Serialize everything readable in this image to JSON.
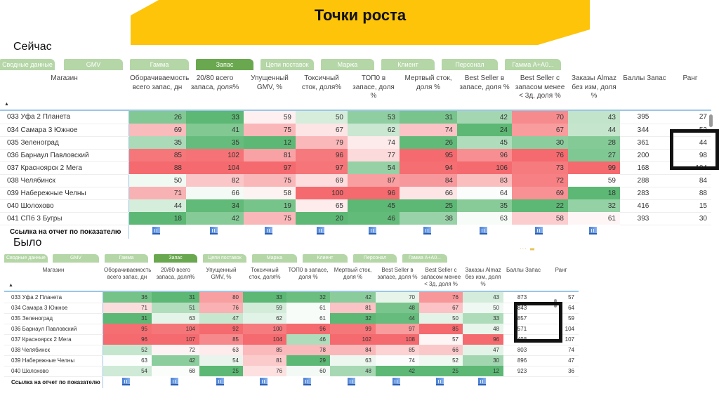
{
  "header": {
    "title": "Точки роста"
  },
  "sections": [
    {
      "label": "Сейчас",
      "tabs": [
        {
          "label": "Сводные данные",
          "active": false
        },
        {
          "label": "GMV",
          "active": false
        },
        {
          "label": "Гамма",
          "active": false
        },
        {
          "label": "Запас",
          "active": true
        },
        {
          "label": "Цепи поставок",
          "active": false
        },
        {
          "label": "Маржа",
          "active": false
        },
        {
          "label": "Клиент",
          "active": false
        },
        {
          "label": "Персонал",
          "active": false
        },
        {
          "label": "Гамма А+А0...",
          "active": false
        }
      ],
      "columns": [
        "Магазин",
        "Оборачиваемость всего запас, дн",
        "20/80 всего запаса, доля%",
        "Упущенный GMV, %",
        "Токсичный сток, доля%",
        "ТОП0 в запасе, доля %",
        "Мертвый сток, доля %",
        "Best Seller в запасе, доля %",
        "Best Seller с запасом менее < 3д, доля %",
        "Заказы Almaz без изм, доля %",
        "Баллы Запас",
        "Ранг"
      ],
      "rows": [
        {
          "store": "033 Уфа 2 Планета",
          "values": [
            26,
            33,
            59,
            50,
            53,
            31,
            42,
            70,
            43
          ],
          "score": 395,
          "rank": 27
        },
        {
          "store": "034 Самара 3 Южное",
          "values": [
            69,
            41,
            75,
            67,
            62,
            74,
            24,
            67,
            44
          ],
          "score": 344,
          "rank": 52
        },
        {
          "store": "035 Зеленоград",
          "values": [
            35,
            35,
            12,
            79,
            74,
            26,
            45,
            30,
            28
          ],
          "score": 361,
          "rank": 44
        },
        {
          "store": "036 Барнаул Павловский",
          "values": [
            85,
            102,
            81,
            96,
            77,
            95,
            96,
            76,
            27
          ],
          "score": 200,
          "rank": 98
        },
        {
          "store": "037 Красноярск 2 Мега",
          "values": [
            88,
            104,
            97,
            97,
            54,
            94,
            106,
            73,
            99
          ],
          "score": 168,
          "rank": 104
        },
        {
          "store": "038 Челябинск",
          "values": [
            50,
            82,
            75,
            69,
            87,
            84,
            83,
            72,
            59
          ],
          "score": 288,
          "rank": 84
        },
        {
          "store": "039 Набережные Челны",
          "values": [
            71,
            66,
            58,
            100,
            96,
            66,
            64,
            69,
            18
          ],
          "score": 283,
          "rank": 88
        },
        {
          "store": "040 Шолохово",
          "values": [
            44,
            34,
            19,
            65,
            45,
            25,
            35,
            22,
            32
          ],
          "score": 416,
          "rank": 15
        },
        {
          "store": "041 СПб 3 Бугры",
          "values": [
            18,
            42,
            75,
            20,
            46,
            38,
            63,
            58,
            61
          ],
          "score": 393,
          "rank": 30
        }
      ],
      "link_row_label": "Ссылка на отчет по показателю",
      "sort_indicator": "▲"
    },
    {
      "label": "Было",
      "tabs": [
        {
          "label": "Сводные данные",
          "active": false
        },
        {
          "label": "GMV",
          "active": false
        },
        {
          "label": "Гамма",
          "active": false
        },
        {
          "label": "Запас",
          "active": true
        },
        {
          "label": "Цепи поставок",
          "active": false
        },
        {
          "label": "Маржа",
          "active": false
        },
        {
          "label": "Клиент",
          "active": false
        },
        {
          "label": "Персонал",
          "active": false
        },
        {
          "label": "Гамма А+А0...",
          "active": false
        }
      ],
      "columns": [
        "Магазин",
        "Оборачиваемость всего запас, дн",
        "20/80 всего запаса, доля%",
        "Упущенный GMV, %",
        "Токсичный сток, доля%",
        "ТОП0 в запасе, доля %",
        "Мертвый сток, доля %",
        "Best Seller в запасе, доля %",
        "Best Seller с запасом менее < 3д, доля %",
        "Заказы Almaz без изм, доля %",
        "Баллы Запас",
        "Ранг"
      ],
      "rows": [
        {
          "store": "033 Уфа 2 Планета",
          "values": [
            36,
            31,
            80,
            33,
            32,
            42,
            70,
            76,
            43
          ],
          "score": 873,
          "rank": 57
        },
        {
          "store": "034 Самара 3 Южное",
          "values": [
            71,
            51,
            76,
            59,
            61,
            81,
            48,
            67,
            50
          ],
          "score": 843,
          "rank": 64
        },
        {
          "store": "035 Зеленоград",
          "values": [
            31,
            63,
            47,
            62,
            61,
            32,
            44,
            50,
            33
          ],
          "score": 857,
          "rank": 59
        },
        {
          "store": "036 Барнаул Павловский",
          "values": [
            95,
            104,
            92,
            100,
            96,
            99,
            97,
            85,
            48
          ],
          "score": 571,
          "rank": 104
        },
        {
          "store": "037 Красноярск 2 Мега",
          "values": [
            96,
            107,
            85,
            104,
            46,
            102,
            108,
            57,
            96
          ],
          "score": 498,
          "rank": 107
        },
        {
          "store": "038 Челябинск",
          "values": [
            52,
            72,
            63,
            85,
            78,
            84,
            85,
            66,
            47
          ],
          "score": 803,
          "rank": 74
        },
        {
          "store": "039 Набережные Челны",
          "values": [
            63,
            42,
            54,
            81,
            29,
            63,
            74,
            52,
            30
          ],
          "score": 896,
          "rank": 47
        },
        {
          "store": "040 Шолохово",
          "values": [
            54,
            68,
            25,
            76,
            60,
            48,
            42,
            25,
            12
          ],
          "score": 923,
          "rank": 36
        }
      ],
      "link_row_label": "Ссылка на отчет по показателю",
      "sort_indicator": "▲"
    }
  ],
  "colors": {
    "banner": "#fdc40a",
    "tab": "#b5d6a7",
    "tab_active": "#6aa84f",
    "heat_low": "#5cb874",
    "heat_mid": "#ffffff",
    "heat_high": "#f46a6e",
    "highlight_border": "#111111"
  },
  "icons": {
    "report_link": "bar-chart-icon"
  }
}
